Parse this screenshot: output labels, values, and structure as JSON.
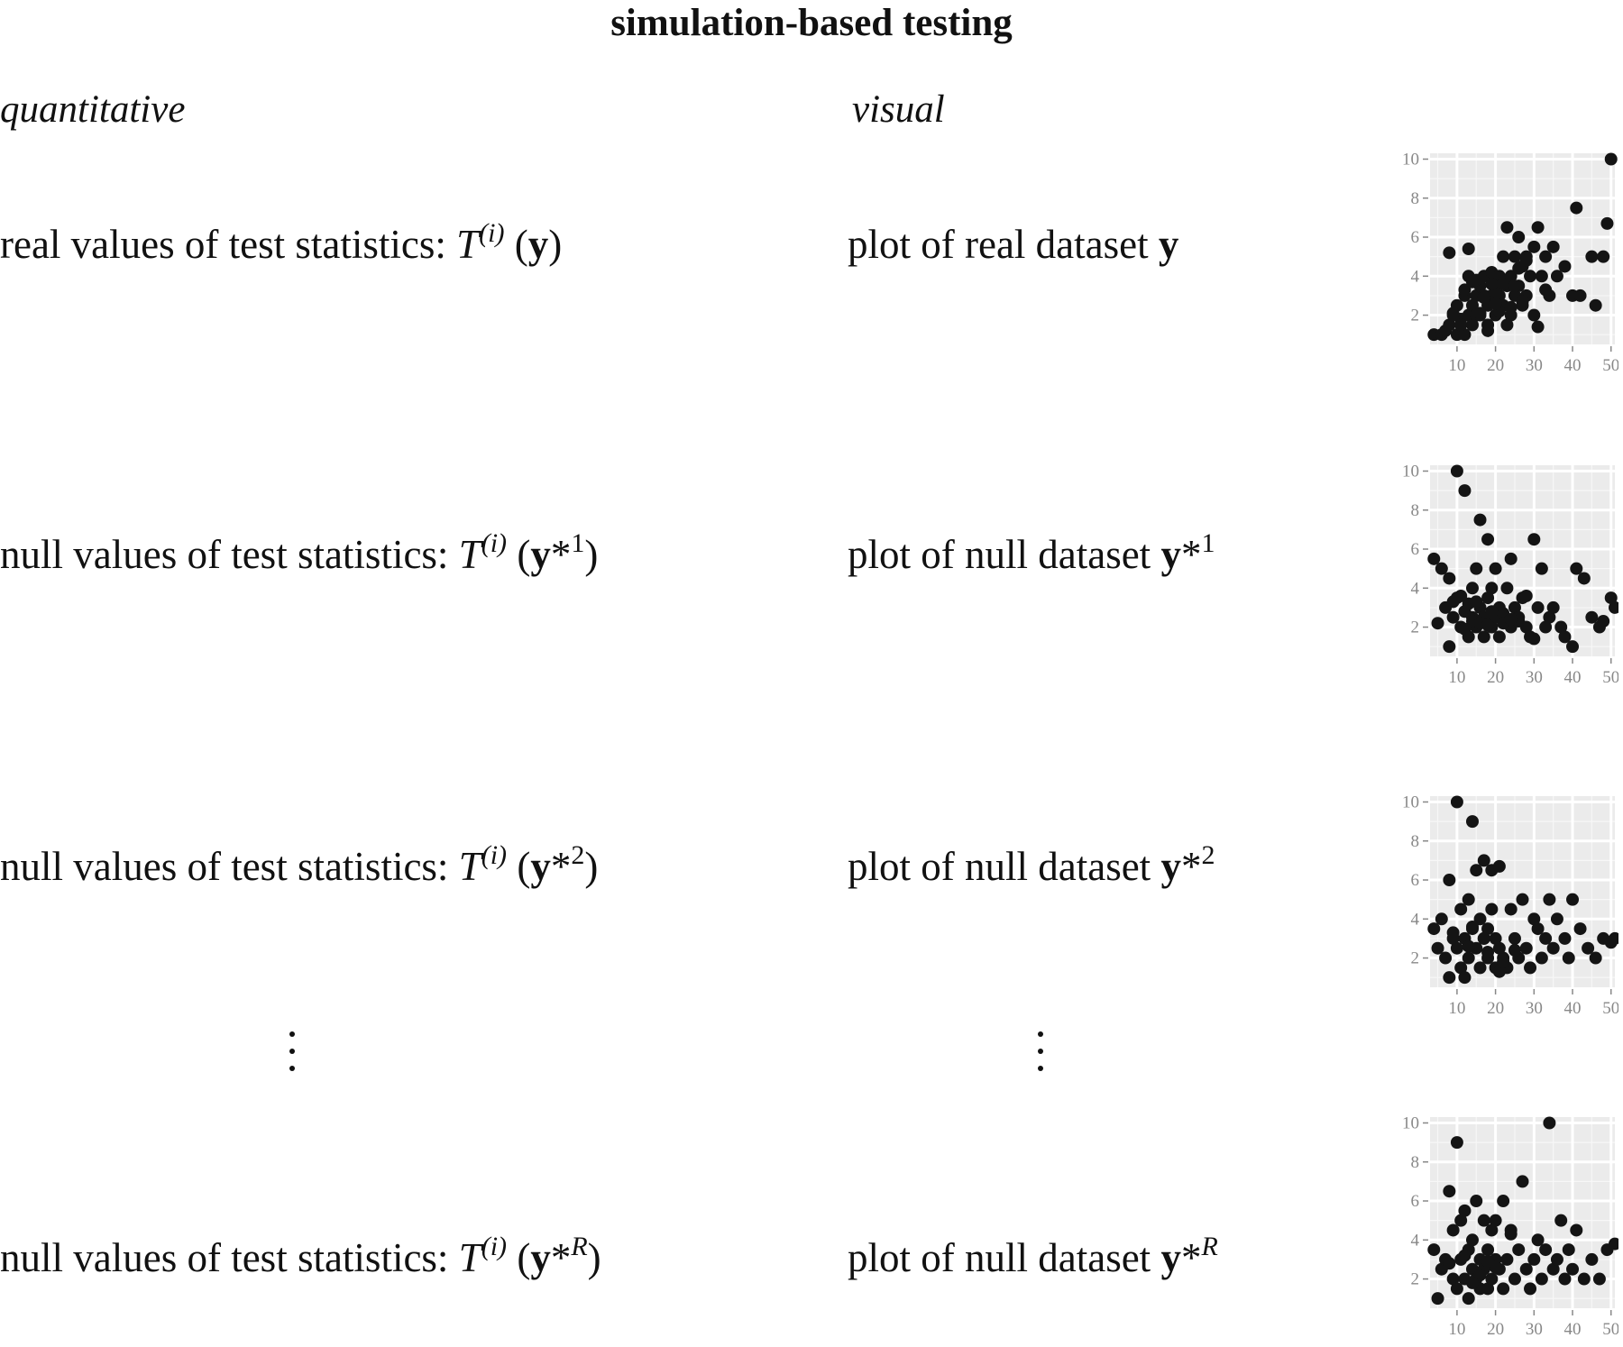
{
  "title": "simulation-based testing",
  "columns": {
    "left": "quantitative",
    "right": "visual"
  },
  "rows": [
    {
      "quant": {
        "prefix": "real values of test statistics: ",
        "T": "T",
        "sup_i": "(i)",
        "open": " (",
        "y": "y",
        "star": "",
        "suffix": "",
        "close": ")"
      },
      "visual": {
        "prefix": "plot of real dataset ",
        "y": "y",
        "star": "",
        "suffix": ""
      }
    },
    {
      "quant": {
        "prefix": "null values of test statistics: ",
        "T": "T",
        "sup_i": "(i)",
        "open": " (",
        "y": "y",
        "star": "*",
        "suffix": "1",
        "close": ")"
      },
      "visual": {
        "prefix": "plot of null dataset ",
        "y": "y",
        "star": "*",
        "suffix": "1"
      }
    },
    {
      "quant": {
        "prefix": "null values of test statistics: ",
        "T": "T",
        "sup_i": "(i)",
        "open": " (",
        "y": "y",
        "star": "*",
        "suffix": "2",
        "close": ")"
      },
      "visual": {
        "prefix": "plot of null dataset ",
        "y": "y",
        "star": "*",
        "suffix": "2"
      }
    },
    {
      "quant": {
        "prefix": "null values of test statistics: ",
        "T": "T",
        "sup_i": "(i)",
        "open": " (",
        "y": "y",
        "star": "*",
        "suffix": "R",
        "close": ")"
      },
      "visual": {
        "prefix": "plot of null dataset ",
        "y": "y",
        "star": "*",
        "suffix": "R"
      }
    }
  ],
  "chart_data": [
    {
      "type": "scatter",
      "xlim": [
        3,
        51
      ],
      "ylim": [
        0.5,
        10.3
      ],
      "xticks": [
        10,
        20,
        30,
        40,
        50
      ],
      "yticks": [
        2,
        4,
        6,
        8,
        10
      ],
      "x": [
        4,
        6,
        7,
        8,
        9,
        10,
        10,
        11,
        12,
        12,
        13,
        13,
        14,
        14,
        15,
        15,
        16,
        16,
        17,
        17,
        18,
        18,
        19,
        19,
        20,
        20,
        21,
        21,
        22,
        22,
        23,
        23,
        24,
        24,
        25,
        25,
        26,
        26,
        27,
        27,
        28,
        28,
        29,
        30,
        30,
        31,
        32,
        33,
        34,
        35,
        36,
        38,
        40,
        41,
        42,
        45,
        46,
        48,
        49,
        50,
        8,
        13,
        18,
        23,
        28,
        33,
        12,
        17,
        22,
        27,
        16,
        21,
        26,
        31,
        11,
        15,
        19,
        24,
        9,
        14,
        20,
        25
      ],
      "y": [
        1,
        1,
        1.2,
        1.5,
        2,
        1,
        2.5,
        1.8,
        3,
        1,
        2,
        4,
        2.5,
        1.5,
        3,
        2,
        3.5,
        2,
        4,
        3,
        2.5,
        1.5,
        3,
        4.2,
        2,
        3.5,
        3,
        4,
        2.5,
        5,
        3.5,
        6.5,
        4,
        2,
        5,
        3,
        3.5,
        6,
        4.5,
        2.5,
        5,
        3,
        4,
        5.5,
        2,
        6.5,
        4,
        5,
        3,
        5.5,
        4,
        4.5,
        3,
        7.5,
        3,
        5,
        2.5,
        5,
        6.7,
        10,
        5.2,
        5.4,
        1.2,
        1.5,
        4.8,
        3.3,
        3.3,
        2.9,
        3.6,
        2.7,
        2.1,
        2.2,
        4.4,
        1.4,
        1.5,
        3.8,
        3.6,
        2.4,
        2.1,
        3.7,
        2.6,
        3.5
      ]
    },
    {
      "type": "scatter",
      "xlim": [
        3,
        51
      ],
      "ylim": [
        0.5,
        10.3
      ],
      "xticks": [
        10,
        20,
        30,
        40,
        50
      ],
      "yticks": [
        2,
        4,
        6,
        8,
        10
      ],
      "x": [
        4,
        5,
        6,
        7,
        8,
        8,
        9,
        10,
        10,
        11,
        12,
        12,
        13,
        13,
        14,
        14,
        15,
        15,
        16,
        16,
        17,
        17,
        18,
        18,
        19,
        19,
        20,
        20,
        21,
        21,
        22,
        23,
        24,
        24,
        25,
        26,
        27,
        28,
        29,
        30,
        31,
        32,
        33,
        34,
        35,
        37,
        38,
        40,
        41,
        43,
        45,
        47,
        48,
        50,
        51,
        9,
        11,
        14,
        16,
        18,
        22,
        26,
        30,
        12,
        15,
        19,
        24,
        28
      ],
      "y": [
        5.5,
        2.2,
        5,
        3,
        1,
        4.5,
        2.5,
        10,
        3.5,
        2,
        9,
        2.8,
        3.2,
        1.5,
        4,
        2.5,
        5,
        2,
        7.5,
        3,
        2.5,
        1.5,
        6.5,
        3.5,
        2,
        4,
        5,
        2.5,
        3,
        1.5,
        2.7,
        4,
        2,
        5.5,
        3,
        2.5,
        3.5,
        2,
        1.5,
        6.5,
        3,
        5,
        2,
        2.5,
        3,
        2,
        1.5,
        1,
        5,
        4.5,
        2.5,
        2,
        2.3,
        3.5,
        3,
        3.3,
        3.6,
        2.3,
        2.2,
        2.1,
        2.2,
        2.3,
        1.4,
        1.9,
        3.3,
        2.8,
        2.4,
        3.6
      ]
    },
    {
      "type": "scatter",
      "xlim": [
        3,
        51
      ],
      "ylim": [
        0.5,
        10.3
      ],
      "xticks": [
        10,
        20,
        30,
        40,
        50
      ],
      "yticks": [
        2,
        4,
        6,
        8,
        10
      ],
      "x": [
        4,
        5,
        6,
        7,
        8,
        8,
        9,
        10,
        10,
        11,
        11,
        12,
        12,
        13,
        13,
        14,
        14,
        15,
        15,
        16,
        16,
        17,
        17,
        18,
        18,
        19,
        19,
        20,
        20,
        21,
        21,
        22,
        23,
        24,
        25,
        26,
        27,
        28,
        29,
        30,
        31,
        32,
        33,
        34,
        35,
        36,
        38,
        39,
        40,
        42,
        44,
        46,
        48,
        50,
        51,
        9,
        13,
        17,
        21,
        25,
        14,
        18,
        22
      ],
      "y": [
        3.5,
        2.5,
        4,
        2,
        1,
        6,
        3,
        10,
        2.5,
        1.5,
        4.5,
        3,
        1,
        5,
        2,
        9,
        3.5,
        6.5,
        2.5,
        4,
        1.5,
        7,
        3,
        3.5,
        2,
        4.5,
        6.5,
        3,
        1.5,
        2.5,
        6.7,
        2,
        1.5,
        4.5,
        3,
        2,
        5,
        2.5,
        1.5,
        4,
        3.5,
        2,
        3,
        5,
        2.5,
        4,
        3,
        2,
        5,
        3.5,
        2.5,
        2,
        3,
        2.8,
        3,
        3.3,
        2.6,
        3,
        1.3,
        2.4,
        3.6,
        2.3,
        1.8
      ]
    },
    {
      "type": "scatter",
      "xlim": [
        3,
        51
      ],
      "ylim": [
        0.5,
        10.3
      ],
      "xticks": [
        10,
        20,
        30,
        40,
        50
      ],
      "yticks": [
        2,
        4,
        6,
        8,
        10
      ],
      "x": [
        4,
        5,
        6,
        7,
        8,
        9,
        9,
        10,
        10,
        11,
        11,
        12,
        12,
        13,
        13,
        14,
        14,
        15,
        15,
        16,
        16,
        17,
        17,
        18,
        18,
        19,
        19,
        20,
        20,
        21,
        22,
        22,
        23,
        24,
        25,
        26,
        27,
        28,
        29,
        30,
        31,
        32,
        33,
        34,
        35,
        36,
        37,
        38,
        39,
        40,
        41,
        43,
        45,
        47,
        49,
        51,
        8,
        12,
        16,
        20,
        24,
        14,
        18
      ],
      "y": [
        3.5,
        1,
        2.5,
        3,
        6.5,
        2,
        4.5,
        9,
        1.5,
        3,
        5,
        2,
        5.5,
        3.5,
        1,
        4,
        2.5,
        6,
        2,
        3,
        1.5,
        5,
        2.5,
        3.5,
        1.5,
        4.5,
        2,
        3,
        5,
        2.5,
        1.5,
        6,
        3,
        4.5,
        2,
        3.5,
        7,
        2.5,
        1.5,
        3,
        4,
        2,
        3.5,
        10,
        2.5,
        3,
        5,
        2,
        3.5,
        2.5,
        4.5,
        2,
        3,
        2,
        3.5,
        3.8,
        2.8,
        3.2,
        2.2,
        2.6,
        4.3,
        1.8,
        2.9
      ]
    }
  ]
}
